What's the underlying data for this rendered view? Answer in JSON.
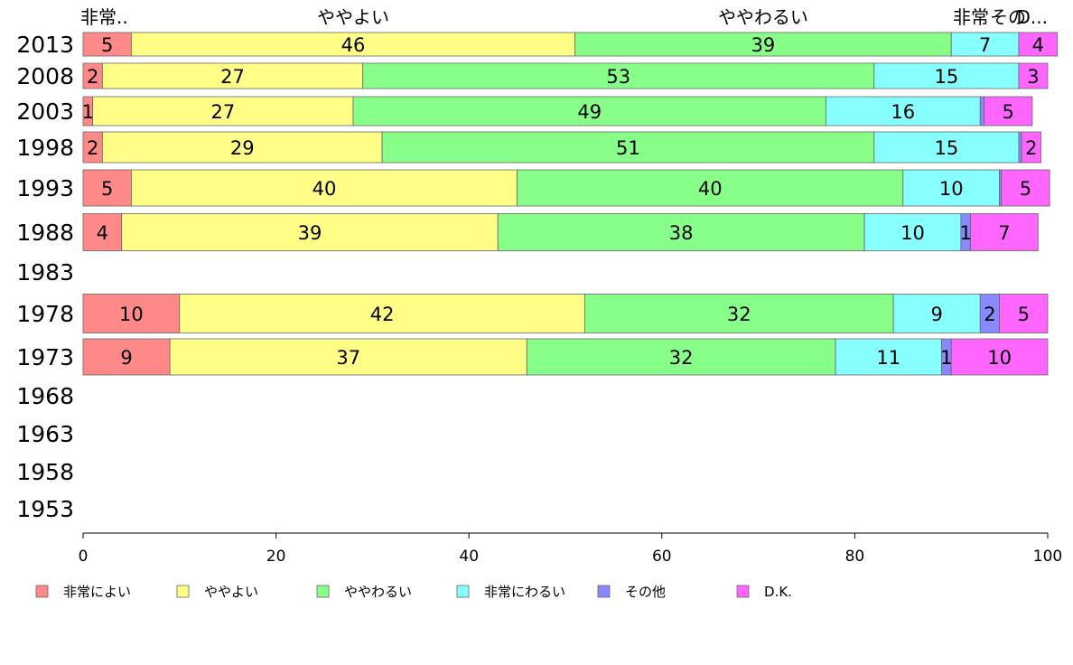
{
  "chart_data": {
    "type": "bar",
    "orientation": "horizontal",
    "stacked": true,
    "categories": [
      "2013",
      "2008",
      "2003",
      "1998",
      "1993",
      "1988",
      "1983",
      "1978",
      "1973",
      "1968",
      "1963",
      "1958",
      "1953"
    ],
    "series": [
      {
        "name": "非常によい",
        "color": "#ff8888",
        "values": [
          5,
          2,
          1,
          2,
          5,
          4,
          null,
          10,
          9,
          null,
          null,
          null,
          null
        ]
      },
      {
        "name": "ややよい",
        "color": "#ffff88",
        "values": [
          46,
          27,
          27,
          29,
          40,
          39,
          null,
          42,
          37,
          null,
          null,
          null,
          null
        ]
      },
      {
        "name": "ややわるい",
        "color": "#88ff88",
        "values": [
          39,
          53,
          49,
          51,
          40,
          38,
          null,
          32,
          32,
          null,
          null,
          null,
          null
        ]
      },
      {
        "name": "非常にわるい",
        "color": "#88ffff",
        "values": [
          7,
          15,
          16,
          15,
          10,
          10,
          null,
          9,
          11,
          null,
          null,
          null,
          null
        ]
      },
      {
        "name": "その他",
        "color": "#8888ff",
        "values": [
          0,
          0,
          0.4,
          0.3,
          0.2,
          1,
          null,
          2,
          1,
          null,
          null,
          null,
          null
        ]
      },
      {
        "name": "D.K.",
        "color": "#ff66ff",
        "values": [
          4,
          3,
          5,
          2,
          5,
          7,
          null,
          5,
          10,
          null,
          null,
          null,
          null
        ]
      }
    ],
    "segment_labels": [
      [
        "5",
        "46",
        "39",
        "7",
        "",
        "4"
      ],
      [
        "2",
        "27",
        "53",
        "15",
        "",
        "3"
      ],
      [
        "1",
        "27",
        "49",
        "16",
        "",
        "5"
      ],
      [
        "2",
        "29",
        "51",
        "15",
        "",
        "2"
      ],
      [
        "5",
        "40",
        "40",
        "10",
        "",
        "5"
      ],
      [
        "4",
        "39",
        "38",
        "10",
        "1",
        "7"
      ],
      [
        "",
        "",
        "",
        "",
        "",
        ""
      ],
      [
        "10",
        "42",
        "32",
        "9",
        "2",
        "5"
      ],
      [
        "9",
        "37",
        "32",
        "11",
        "1",
        "10"
      ],
      [
        "",
        "",
        "",
        "",
        "",
        ""
      ],
      [
        "",
        "",
        "",
        "",
        "",
        ""
      ],
      [
        "",
        "",
        "",
        "",
        "",
        ""
      ],
      [
        "",
        "",
        "",
        "",
        "",
        ""
      ]
    ],
    "top_labels": [
      "非常..",
      "ややよい",
      "ややわるい",
      "非常",
      "その",
      "D..."
    ],
    "xlim": [
      0,
      100
    ],
    "xticks": [
      "0",
      "20",
      "40",
      "60",
      "80",
      "100"
    ],
    "legend": {
      "placement": "bottom",
      "items": [
        {
          "label": "非常によい",
          "color": "#ff8888"
        },
        {
          "label": "ややよい",
          "color": "#ffff88"
        },
        {
          "label": "ややわるい",
          "color": "#88ff88"
        },
        {
          "label": "非常にわるい",
          "color": "#88ffff"
        },
        {
          "label": "その他",
          "color": "#8888ff"
        },
        {
          "label": "D.K.",
          "color": "#ff66ff"
        }
      ]
    },
    "grid": false
  }
}
